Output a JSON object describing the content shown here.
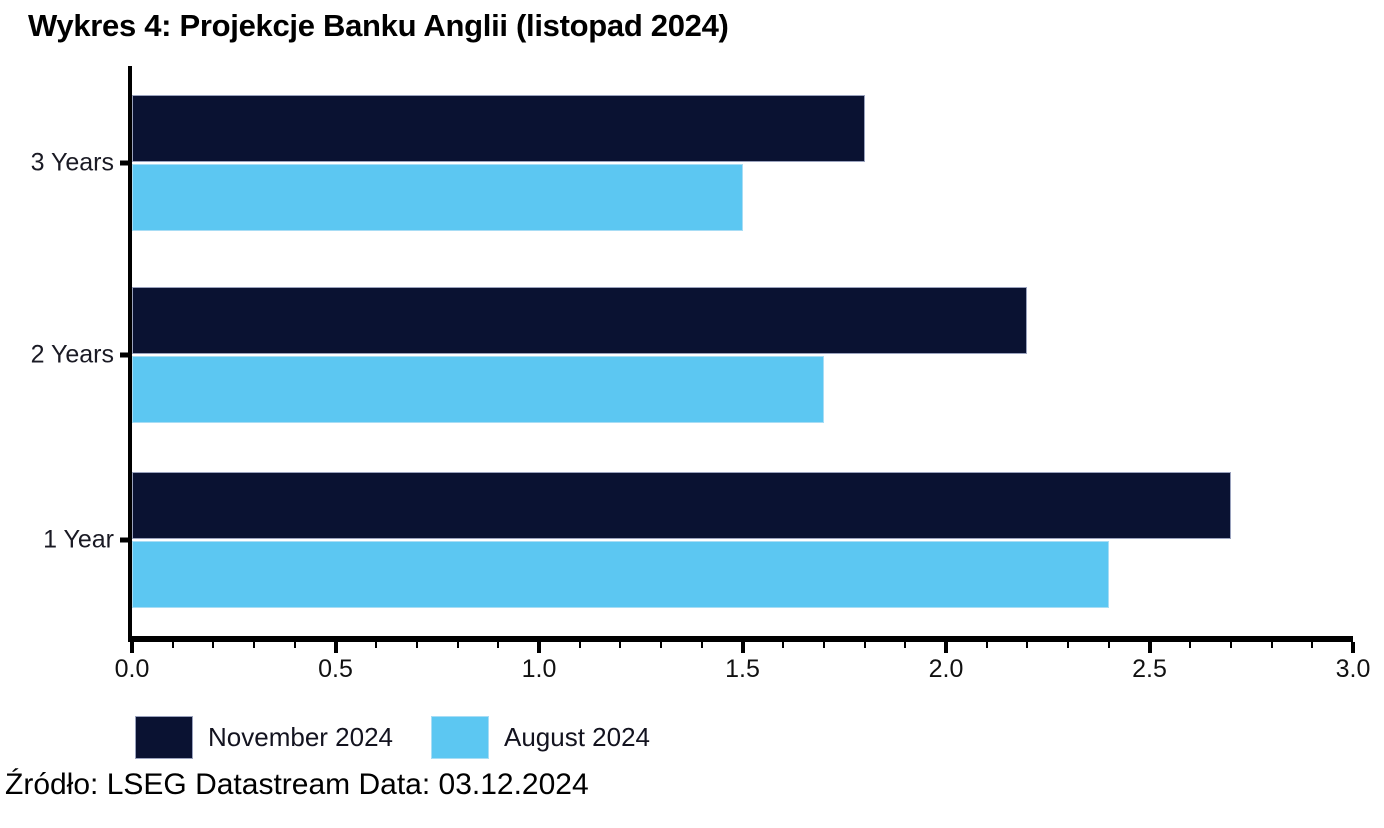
{
  "title": "Wykres 4: Projekcje Banku Anglii (listopad 2024)",
  "source_line": "Źródło: LSEG Datastream Data: 03.12.2024",
  "colors": {
    "november_2024": "#0a1232",
    "august_2024": "#5cc7f2",
    "axis": "#000000"
  },
  "legend": {
    "items": [
      {
        "label": "November 2024",
        "color": "#0a1232"
      },
      {
        "label": "August 2024",
        "color": "#5cc7f2"
      }
    ]
  },
  "chart_data": {
    "type": "bar",
    "orientation": "horizontal",
    "title": "Wykres 4: Projekcje Banku Anglii (listopad 2024)",
    "categories": [
      "3 Years",
      "2 Years",
      "1 Year"
    ],
    "series": [
      {
        "name": "November 2024",
        "color": "#0a1232",
        "values": [
          1.8,
          2.2,
          2.7
        ]
      },
      {
        "name": "August 2024",
        "color": "#5cc7f2",
        "values": [
          1.5,
          1.7,
          2.4
        ]
      }
    ],
    "xlabel": "",
    "ylabel": "",
    "xlim": [
      0.0,
      3.0
    ],
    "x_tick_labels": [
      "0.0",
      "0.5",
      "1.0",
      "1.5",
      "2.0",
      "2.5",
      "3.0"
    ],
    "x_major_tick_step": 0.5,
    "x_minor_tick_step": 0.1,
    "grid": false,
    "legend_position": "bottom-left",
    "source": "Źródło: LSEG Datastream Data: 03.12.2024"
  }
}
